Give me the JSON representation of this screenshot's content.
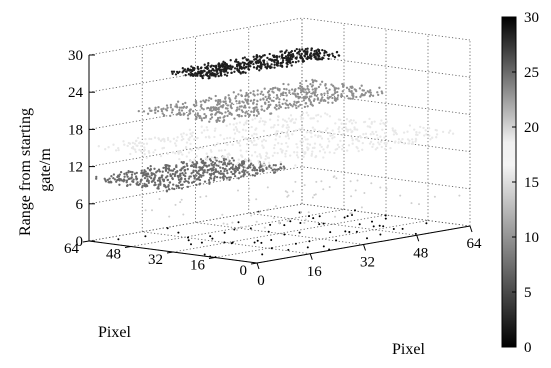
{
  "chart_data": {
    "type": "scatter",
    "subtype": "3d-point-cloud",
    "title": "",
    "xlabel": "Pixel",
    "ylabel": "Pixel",
    "zlabel": "Range from starting gate/m",
    "x_ticks": [
      "0",
      "16",
      "32",
      "48",
      "64"
    ],
    "y_ticks": [
      "0",
      "16",
      "32",
      "48",
      "64"
    ],
    "z_ticks": [
      "0",
      "6",
      "12",
      "18",
      "24",
      "30"
    ],
    "xlim": [
      0,
      64
    ],
    "ylim": [
      0,
      64
    ],
    "zlim": [
      0,
      30
    ],
    "grid": true,
    "colormap": "gray",
    "colorbar": {
      "ticks": [
        "0",
        "5",
        "10",
        "15",
        "20",
        "25",
        "30"
      ],
      "range": [
        0,
        30
      ],
      "placement": "right"
    },
    "layers": [
      {
        "range_m": 0,
        "shade": "black",
        "x_range": [
          0,
          64
        ],
        "y_range": [
          0,
          64
        ],
        "density": "sparse"
      },
      {
        "range_m": 5,
        "shade": "light gray",
        "x_range": [
          0,
          64
        ],
        "y_range": [
          0,
          64
        ],
        "density": "sparse"
      },
      {
        "range_m": 10,
        "shade": "dark gray",
        "x_range": [
          0,
          38
        ],
        "y_range": [
          34,
          64
        ],
        "density": "dense"
      },
      {
        "range_m": 15,
        "shade": "very light",
        "x_range": [
          0,
          64
        ],
        "y_range": [
          0,
          64
        ],
        "density": "dense"
      },
      {
        "range_m": 20,
        "shade": "gray",
        "x_range": [
          12,
          64
        ],
        "y_range": [
          30,
          62
        ],
        "density": "dense"
      },
      {
        "range_m": 25,
        "shade": "near black",
        "x_range": [
          24,
          64
        ],
        "y_range": [
          48,
          64
        ],
        "density": "dense"
      }
    ]
  }
}
